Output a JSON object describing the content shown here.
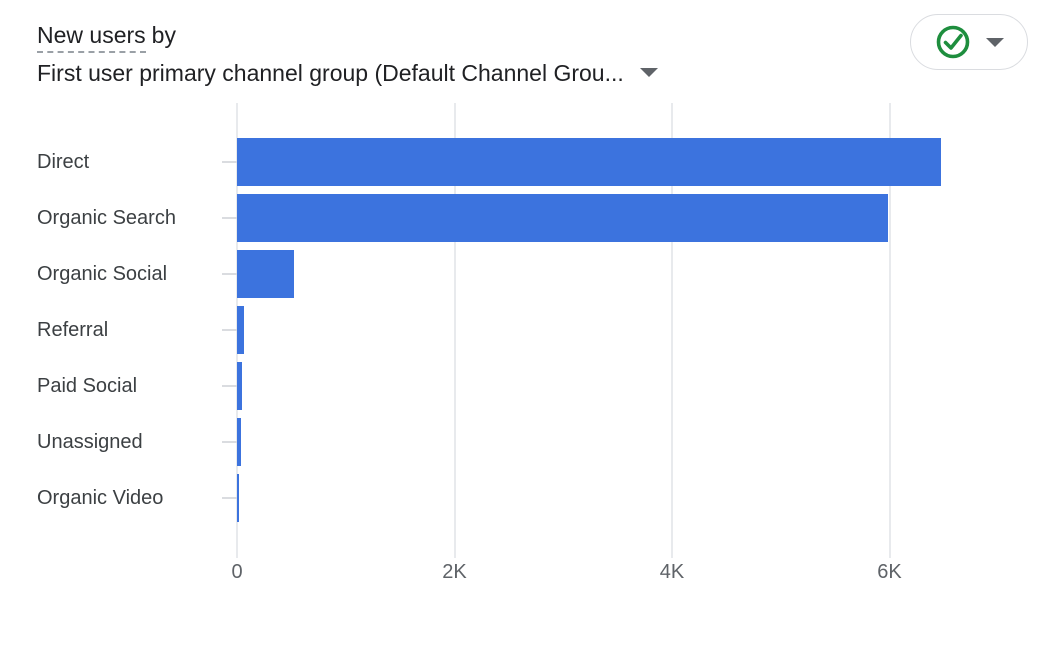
{
  "header": {
    "metric": "New users",
    "by_text": "by",
    "dimension": "First user primary channel group (Default Channel Grou..."
  },
  "quality_button": {
    "icon": "check-circle",
    "status_color": "#1e8e3e"
  },
  "icons": {
    "dropdown_caret": "triangle-down",
    "quality_check": "circled-checkmark"
  },
  "colors": {
    "bar": "#3c73de",
    "gridline": "#e8eaed",
    "axis_label": "#5f6368",
    "category_label": "#3c4043",
    "title": "#202124",
    "pill_border": "#dadce0",
    "check_green": "#1e8e3e"
  },
  "chart_data": {
    "type": "bar",
    "orientation": "horizontal",
    "title": "New users by First user primary channel group (Default Channel Group)",
    "categories": [
      "Direct",
      "Organic Search",
      "Organic Social",
      "Referral",
      "Paid Social",
      "Unassigned",
      "Organic Video"
    ],
    "values": [
      6470,
      5990,
      520,
      60,
      45,
      35,
      20
    ],
    "xlabel": "",
    "ylabel": "",
    "xlim": [
      0,
      7200
    ],
    "x_ticks": [
      {
        "value": 0,
        "label": "0"
      },
      {
        "value": 2000,
        "label": "2K"
      },
      {
        "value": 4000,
        "label": "4K"
      },
      {
        "value": 6000,
        "label": "6K"
      }
    ],
    "grid": true,
    "legend": false
  }
}
